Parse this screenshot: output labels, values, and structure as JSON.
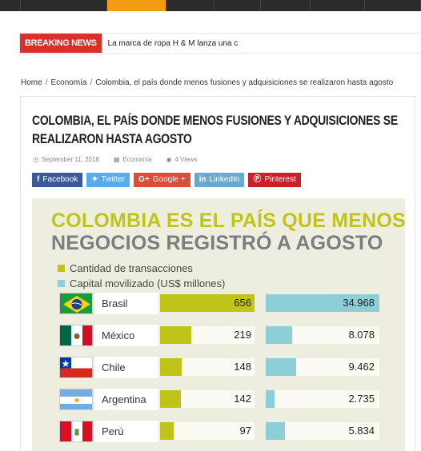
{
  "breaking": {
    "label": "BREAKING NEWS",
    "headline": "La marca de ropa H & M lanza una c"
  },
  "breadcrumb": {
    "home": "Home",
    "category": "Economía",
    "current": "Colombia, el país donde menos fusiones y adquisiciones se realizaron hasta agosto"
  },
  "article": {
    "title": "COLOMBIA, EL PAÍS DONDE MENOS FUSIONES Y ADQUISICIONES SE REALIZARON HASTA AGOSTO",
    "date": "September 11, 2018",
    "category": "Economía",
    "views": "4 Views"
  },
  "share": {
    "facebook": "Facebook",
    "twitter": "Twitter",
    "google": "Google +",
    "linkedin": "LinkedIn",
    "pinterest": "Pinterest"
  },
  "infographic": {
    "title_line1": "COLOMBIA ES EL PAÍS QUE MENOS",
    "title_line2": "NEGOCIOS REGISTRÓ A AGOSTO",
    "legend_transactions": "Cantidad de transacciones",
    "legend_capital": "Capital movilizado (US$ millones)",
    "color_transactions": "#c0c418",
    "color_capital": "#8ccfd9"
  },
  "chart_data": {
    "type": "bar",
    "title": "COLOMBIA ES EL PAÍS QUE MENOS NEGOCIOS REGISTRÓ A AGOSTO",
    "categories": [
      "Brasil",
      "México",
      "Chile",
      "Argentina",
      "Perú"
    ],
    "series": [
      {
        "name": "Cantidad de transacciones",
        "values": [
          656,
          219,
          148,
          142,
          97
        ],
        "labels": [
          "656",
          "219",
          "148",
          "142",
          "97"
        ]
      },
      {
        "name": "Capital movilizado (US$ millones)",
        "values": [
          34968,
          8078,
          9462,
          2735,
          5834
        ],
        "labels": [
          "34.968",
          "8.078",
          "9.462",
          "2.735",
          "5.834"
        ]
      }
    ]
  },
  "colors": {
    "accent": "#f39c12",
    "breaking": "#d9302b"
  }
}
